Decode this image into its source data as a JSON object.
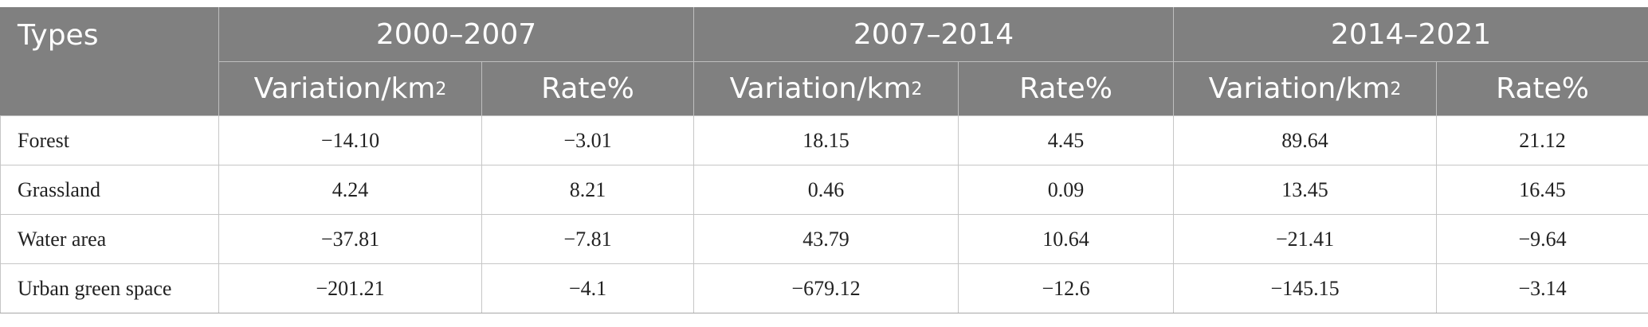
{
  "table": {
    "types_header": "Types",
    "periods": [
      {
        "label": "2000–2007"
      },
      {
        "label": "2007–2014"
      },
      {
        "label": "2014–2021"
      }
    ],
    "sub_headers": {
      "variation_base": "Variation/km",
      "variation_sup": "2",
      "rate": "Rate%"
    },
    "rows": [
      {
        "type": "Forest",
        "values": [
          "−14.10",
          "−3.01",
          "18.15",
          "4.45",
          "89.64",
          "21.12"
        ]
      },
      {
        "type": "Grassland",
        "values": [
          "4.24",
          "8.21",
          "0.46",
          "0.09",
          "13.45",
          "16.45"
        ]
      },
      {
        "type": "Water area",
        "values": [
          "−37.81",
          "−7.81",
          "43.79",
          "10.64",
          "−21.41",
          "−9.64"
        ]
      },
      {
        "type": "Urban green space",
        "values": [
          "−201.21",
          "−4.1",
          "−679.12",
          "−12.6",
          "−145.15",
          "−3.14"
        ]
      }
    ]
  }
}
